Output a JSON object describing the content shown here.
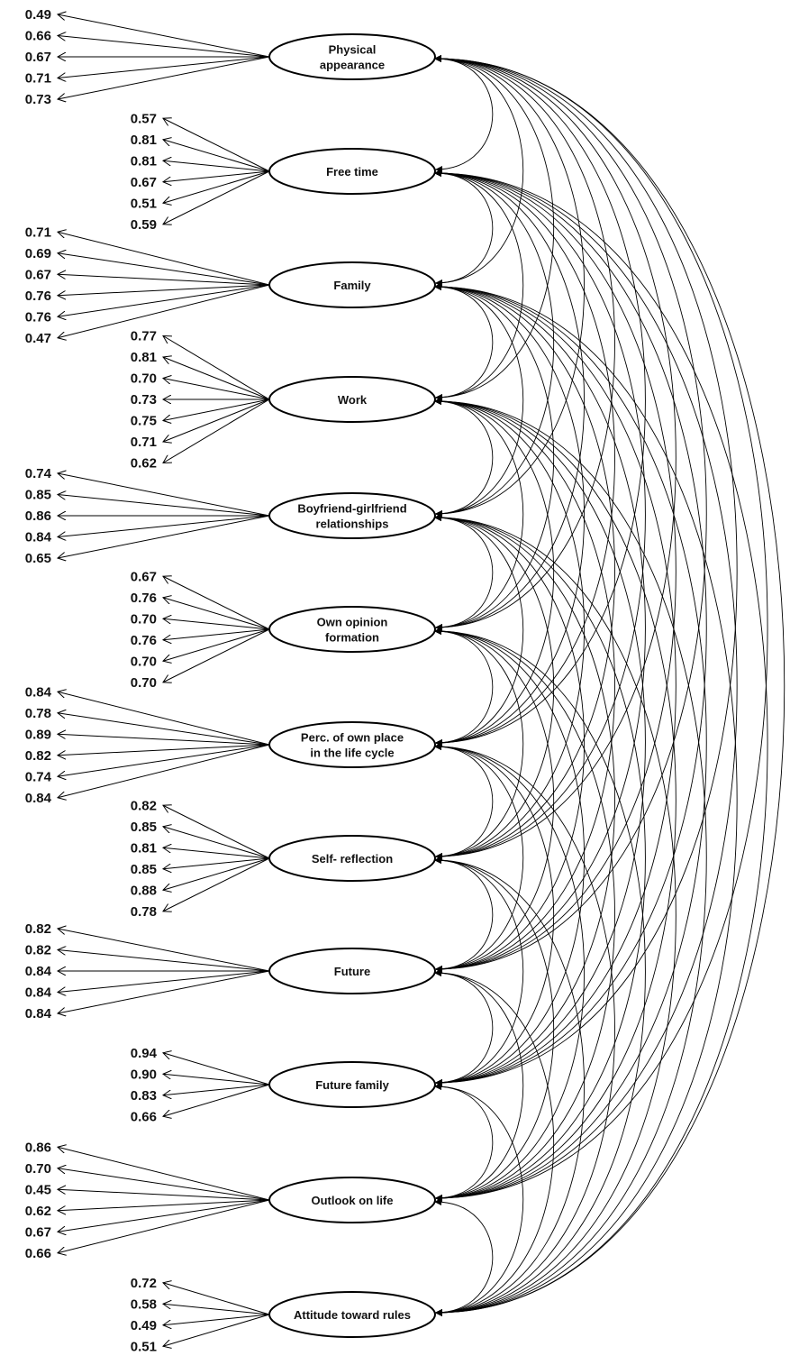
{
  "factors": [
    {
      "label": [
        "Physical",
        "appearance"
      ],
      "loadings": [
        "0.49",
        "0.66",
        "0.67",
        "0.71",
        "0.73"
      ]
    },
    {
      "label": [
        "Free time"
      ],
      "loadings": [
        "0.57",
        "0.81",
        "0.81",
        "0.67",
        "0.51",
        "0.59"
      ]
    },
    {
      "label": [
        "Family"
      ],
      "loadings": [
        "0.71",
        "0.69",
        "0.67",
        "0.76",
        "0.76",
        "0.47"
      ]
    },
    {
      "label": [
        "Work"
      ],
      "loadings": [
        "0.77",
        "0.81",
        "0.70",
        "0.73",
        "0.75",
        "0.71",
        "0.62"
      ]
    },
    {
      "label": [
        "Boyfriend-girlfriend",
        "relationships"
      ],
      "loadings": [
        "0.74",
        "0.85",
        "0.86",
        "0.84",
        "0.65"
      ]
    },
    {
      "label": [
        "Own opinion",
        "formation"
      ],
      "loadings": [
        "0.67",
        "0.76",
        "0.70",
        "0.76",
        "0.70",
        "0.70"
      ]
    },
    {
      "label": [
        "Perc. of own place",
        "in the life cycle"
      ],
      "loadings": [
        "0.84",
        "0.78",
        "0.89",
        "0.82",
        "0.74",
        "0.84"
      ]
    },
    {
      "label": [
        "Self- reflection"
      ],
      "loadings": [
        "0.82",
        "0.85",
        "0.81",
        "0.85",
        "0.88",
        "0.78"
      ]
    },
    {
      "label": [
        "Future"
      ],
      "loadings": [
        "0.82",
        "0.82",
        "0.84",
        "0.84",
        "0.84"
      ]
    },
    {
      "label": [
        "Future family"
      ],
      "loadings": [
        "0.94",
        "0.90",
        "0.83",
        "0.66"
      ]
    },
    {
      "label": [
        "Outlook on life"
      ],
      "loadings": [
        "0.86",
        "0.70",
        "0.45",
        "0.62",
        "0.67",
        "0.66"
      ]
    },
    {
      "label": [
        "Attitude toward rules"
      ],
      "loadings": [
        "0.72",
        "0.58",
        "0.49",
        "0.51"
      ]
    }
  ],
  "correlations": "all-pairs"
}
